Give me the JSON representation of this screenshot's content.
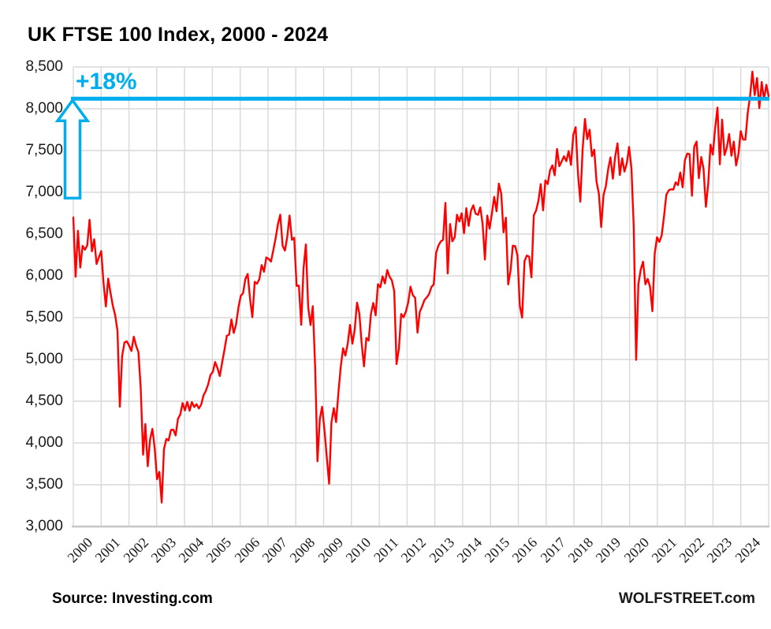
{
  "header": {
    "title": "UK FTSE 100 Index, 2000 - 2024"
  },
  "footer": {
    "source": "Source: Investing.com",
    "brand": "WOLFSTREET.com"
  },
  "chart_data": {
    "type": "line",
    "title": "UK FTSE 100 Index, 2000 - 2024",
    "xlabel": "",
    "ylabel": "",
    "grid": true,
    "grid_color": "#D9D9D9",
    "axis_color": "#C6C6C6",
    "ylim": [
      3000,
      8500
    ],
    "y_tick_values": [
      3000,
      3500,
      4000,
      4500,
      5000,
      5500,
      6000,
      6500,
      7000,
      7500,
      8000,
      8500
    ],
    "y_tick_labels": [
      "3,000",
      "3,500",
      "4,000",
      "4,500",
      "5,000",
      "5,500",
      "6,000",
      "6,500",
      "7,000",
      "7,500",
      "8,000",
      "8,500"
    ],
    "x_tick_labels": [
      "2000",
      "2001",
      "2002",
      "2003",
      "2004",
      "2005",
      "2006",
      "2007",
      "2008",
      "2009",
      "2010",
      "2011",
      "2012",
      "2013",
      "2014",
      "2015",
      "2016",
      "2017",
      "2018",
      "2019",
      "2020",
      "2021",
      "2022",
      "2023",
      "2024"
    ],
    "series": [
      {
        "name": "FTSE 100 Index",
        "color": "#FF0000",
        "granularity": "monthly",
        "x_range_years": [
          2000,
          2024
        ],
        "values": [
          6700,
          5990,
          6540,
          6100,
          6359,
          6313,
          6365,
          6672,
          6294,
          6438,
          6142,
          6222,
          6297,
          5917,
          5634,
          5967,
          5796,
          5643,
          5529,
          5345,
          4434,
          5039,
          5203,
          5217,
          5165,
          5101,
          5272,
          5165,
          5086,
          4656,
          3860,
          4227,
          3722,
          4040,
          4169,
          3940,
          3567,
          3655,
          3287,
          3926,
          4048,
          4031,
          4157,
          4161,
          4091,
          4287,
          4342,
          4477,
          4390,
          4492,
          4386,
          4490,
          4430,
          4464,
          4413,
          4459,
          4571,
          4624,
          4703,
          4814,
          4852,
          4969,
          4894,
          4801,
          4964,
          5113,
          5282,
          5297,
          5478,
          5317,
          5423,
          5619,
          5760,
          5792,
          5965,
          6023,
          5724,
          5506,
          5928,
          5906,
          5961,
          6129,
          6049,
          6221,
          6204,
          6171,
          6308,
          6449,
          6622,
          6732,
          6360,
          6303,
          6467,
          6722,
          6432,
          6457,
          5880,
          5884,
          5414,
          6087,
          6376,
          5626,
          5412,
          5637,
          4902,
          3781,
          4288,
          4434,
          4150,
          3830,
          3512,
          4243,
          4418,
          4249,
          4608,
          4909,
          5134,
          5045,
          5191,
          5413,
          5189,
          5354,
          5680,
          5553,
          5188,
          4917,
          5258,
          5225,
          5549,
          5675,
          5528,
          5900,
          5863,
          5994,
          5909,
          6070,
          5990,
          5946,
          5815,
          4944,
          5128,
          5544,
          5505,
          5572,
          5682,
          5871,
          5768,
          5738,
          5321,
          5571,
          5635,
          5711,
          5742,
          5783,
          5867,
          5898,
          6277,
          6361,
          6412,
          6430,
          6875,
          6029,
          6621,
          6413,
          6462,
          6731,
          6651,
          6749,
          6510,
          6810,
          6598,
          6780,
          6844,
          6744,
          6730,
          6820,
          6623,
          6195,
          6723,
          6566,
          6749,
          6946,
          6773,
          7104,
          6984,
          6521,
          6696,
          5898,
          6062,
          6361,
          6356,
          6242,
          5640,
          5500,
          6175,
          6242,
          6231,
          5982,
          6724,
          6782,
          6899,
          7098,
          6784,
          7143,
          7099,
          7263,
          7323,
          7204,
          7520,
          7313,
          7372,
          7431,
          7373,
          7493,
          7327,
          7688,
          7779,
          7232,
          6889,
          7509,
          7877,
          7637,
          7749,
          7432,
          7510,
          7128,
          6980,
          6584,
          6969,
          7075,
          7279,
          7418,
          7162,
          7426,
          7587,
          7207,
          7408,
          7248,
          7347,
          7542,
          7286,
          6580,
          4994,
          5901,
          6077,
          6170,
          5898,
          5964,
          5866,
          5577,
          6266,
          6461,
          6407,
          6483,
          6714,
          6970,
          7023,
          7037,
          7032,
          7120,
          7086,
          7238,
          7059,
          7385,
          7464,
          7458,
          6959,
          7545,
          7608,
          7169,
          7423,
          7284,
          6826,
          7095,
          7573,
          7452,
          7772,
          8014,
          7335,
          7870,
          7446,
          7532,
          7699,
          7439,
          7608,
          7322,
          7454,
          7733,
          7631,
          7630,
          7953,
          8144,
          8445,
          8164,
          8368,
          8008,
          8320,
          8110,
          8287,
          8150
        ]
      }
    ],
    "annotation": {
      "label": "+18%",
      "line_value": 8120,
      "arrow_from_value": 6930,
      "color": "#00AEEF"
    }
  }
}
